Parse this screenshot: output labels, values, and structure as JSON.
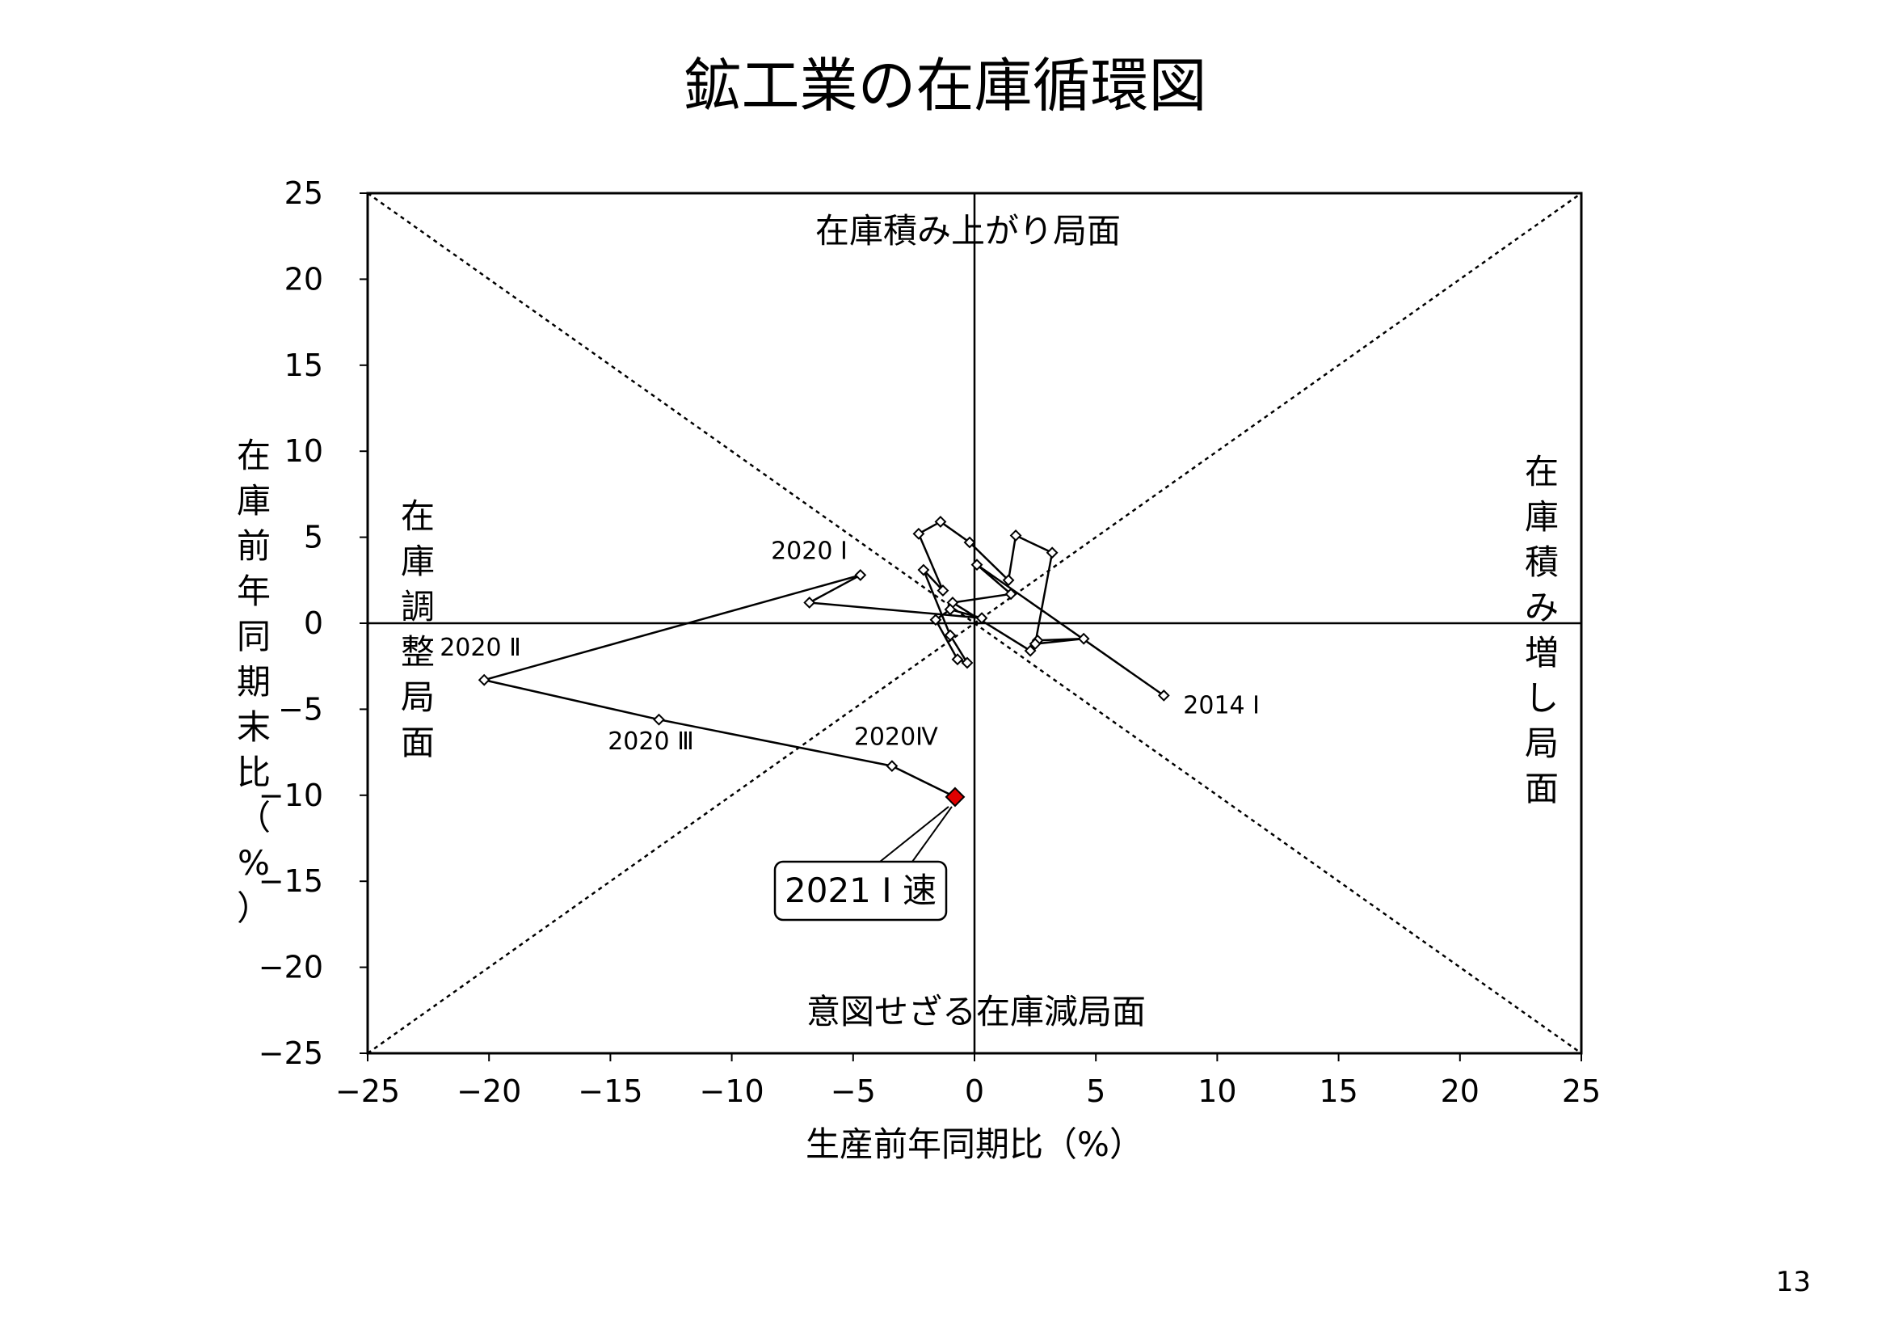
{
  "title": "鉱工業の在庫循環図",
  "page_number": "13",
  "colors": {
    "line": "#000000",
    "marker_fill": "#ffffff",
    "highlight": "#e00000"
  },
  "chart_data": {
    "type": "scatter",
    "title": "鉱工業の在庫循環図",
    "xlabel": "生産前年同期比（%）",
    "ylabel": "在庫前年同期末比（%）",
    "xlim": [
      -25,
      25
    ],
    "ylim": [
      -25,
      25
    ],
    "xticks": [
      -25,
      -20,
      -15,
      -10,
      -5,
      0,
      5,
      10,
      15,
      20,
      25
    ],
    "yticks": [
      -25,
      -20,
      -15,
      -10,
      -5,
      0,
      5,
      10,
      15,
      20,
      25
    ],
    "tick_labels_x": [
      "−25",
      "−20",
      "−15",
      "−10",
      "−5",
      "0",
      "5",
      "10",
      "15",
      "20",
      "25"
    ],
    "tick_labels_y": [
      "−25",
      "−20",
      "−15",
      "−10",
      "−5",
      "0",
      "5",
      "10",
      "15",
      "20",
      "25"
    ],
    "grid": false,
    "guide_lines": "diagonals y = x and y = −x (dotted)",
    "series": [
      {
        "points": [
          {
            "x": 7.8,
            "y": -4.2,
            "label": "2014 Ⅰ"
          },
          {
            "x": 0.1,
            "y": 3.4
          },
          {
            "x": 1.5,
            "y": 1.7
          },
          {
            "x": -0.9,
            "y": 1.2
          },
          {
            "x": 2.3,
            "y": -1.6
          },
          {
            "x": 2.6,
            "y": -1.0
          },
          {
            "x": 4.5,
            "y": -0.9
          },
          {
            "x": 2.5,
            "y": -1.2
          },
          {
            "x": 3.2,
            "y": 4.1
          },
          {
            "x": 1.7,
            "y": 5.1
          },
          {
            "x": 1.4,
            "y": 2.5
          },
          {
            "x": -0.2,
            "y": 4.7
          },
          {
            "x": -1.4,
            "y": 5.9
          },
          {
            "x": -2.3,
            "y": 5.2
          },
          {
            "x": -1.3,
            "y": 1.9
          },
          {
            "x": -2.1,
            "y": 3.1
          },
          {
            "x": -1.0,
            "y": -0.7
          },
          {
            "x": -0.3,
            "y": -2.3
          },
          {
            "x": -0.7,
            "y": -2.1
          },
          {
            "x": -1.6,
            "y": 0.2
          },
          {
            "x": -1.0,
            "y": 0.8
          },
          {
            "x": 0.3,
            "y": 0.3
          },
          {
            "x": -6.8,
            "y": 1.2
          },
          {
            "x": -4.7,
            "y": 2.8,
            "label": "2020 Ⅰ"
          },
          {
            "x": -20.2,
            "y": -3.3,
            "label": "2020 Ⅱ"
          },
          {
            "x": -13.0,
            "y": -5.6,
            "label": "2020 Ⅲ"
          },
          {
            "x": -3.4,
            "y": -8.3,
            "label": "2020Ⅳ"
          },
          {
            "x": -0.8,
            "y": -10.1,
            "label": "2021 Ⅰ 速",
            "highlight": true
          }
        ]
      }
    ],
    "annotations": {
      "top": "在庫積み上がり局面",
      "bottom": "意図せざる在庫減局面",
      "left": "在庫調整局面",
      "right": "在庫積み増し局面"
    }
  }
}
